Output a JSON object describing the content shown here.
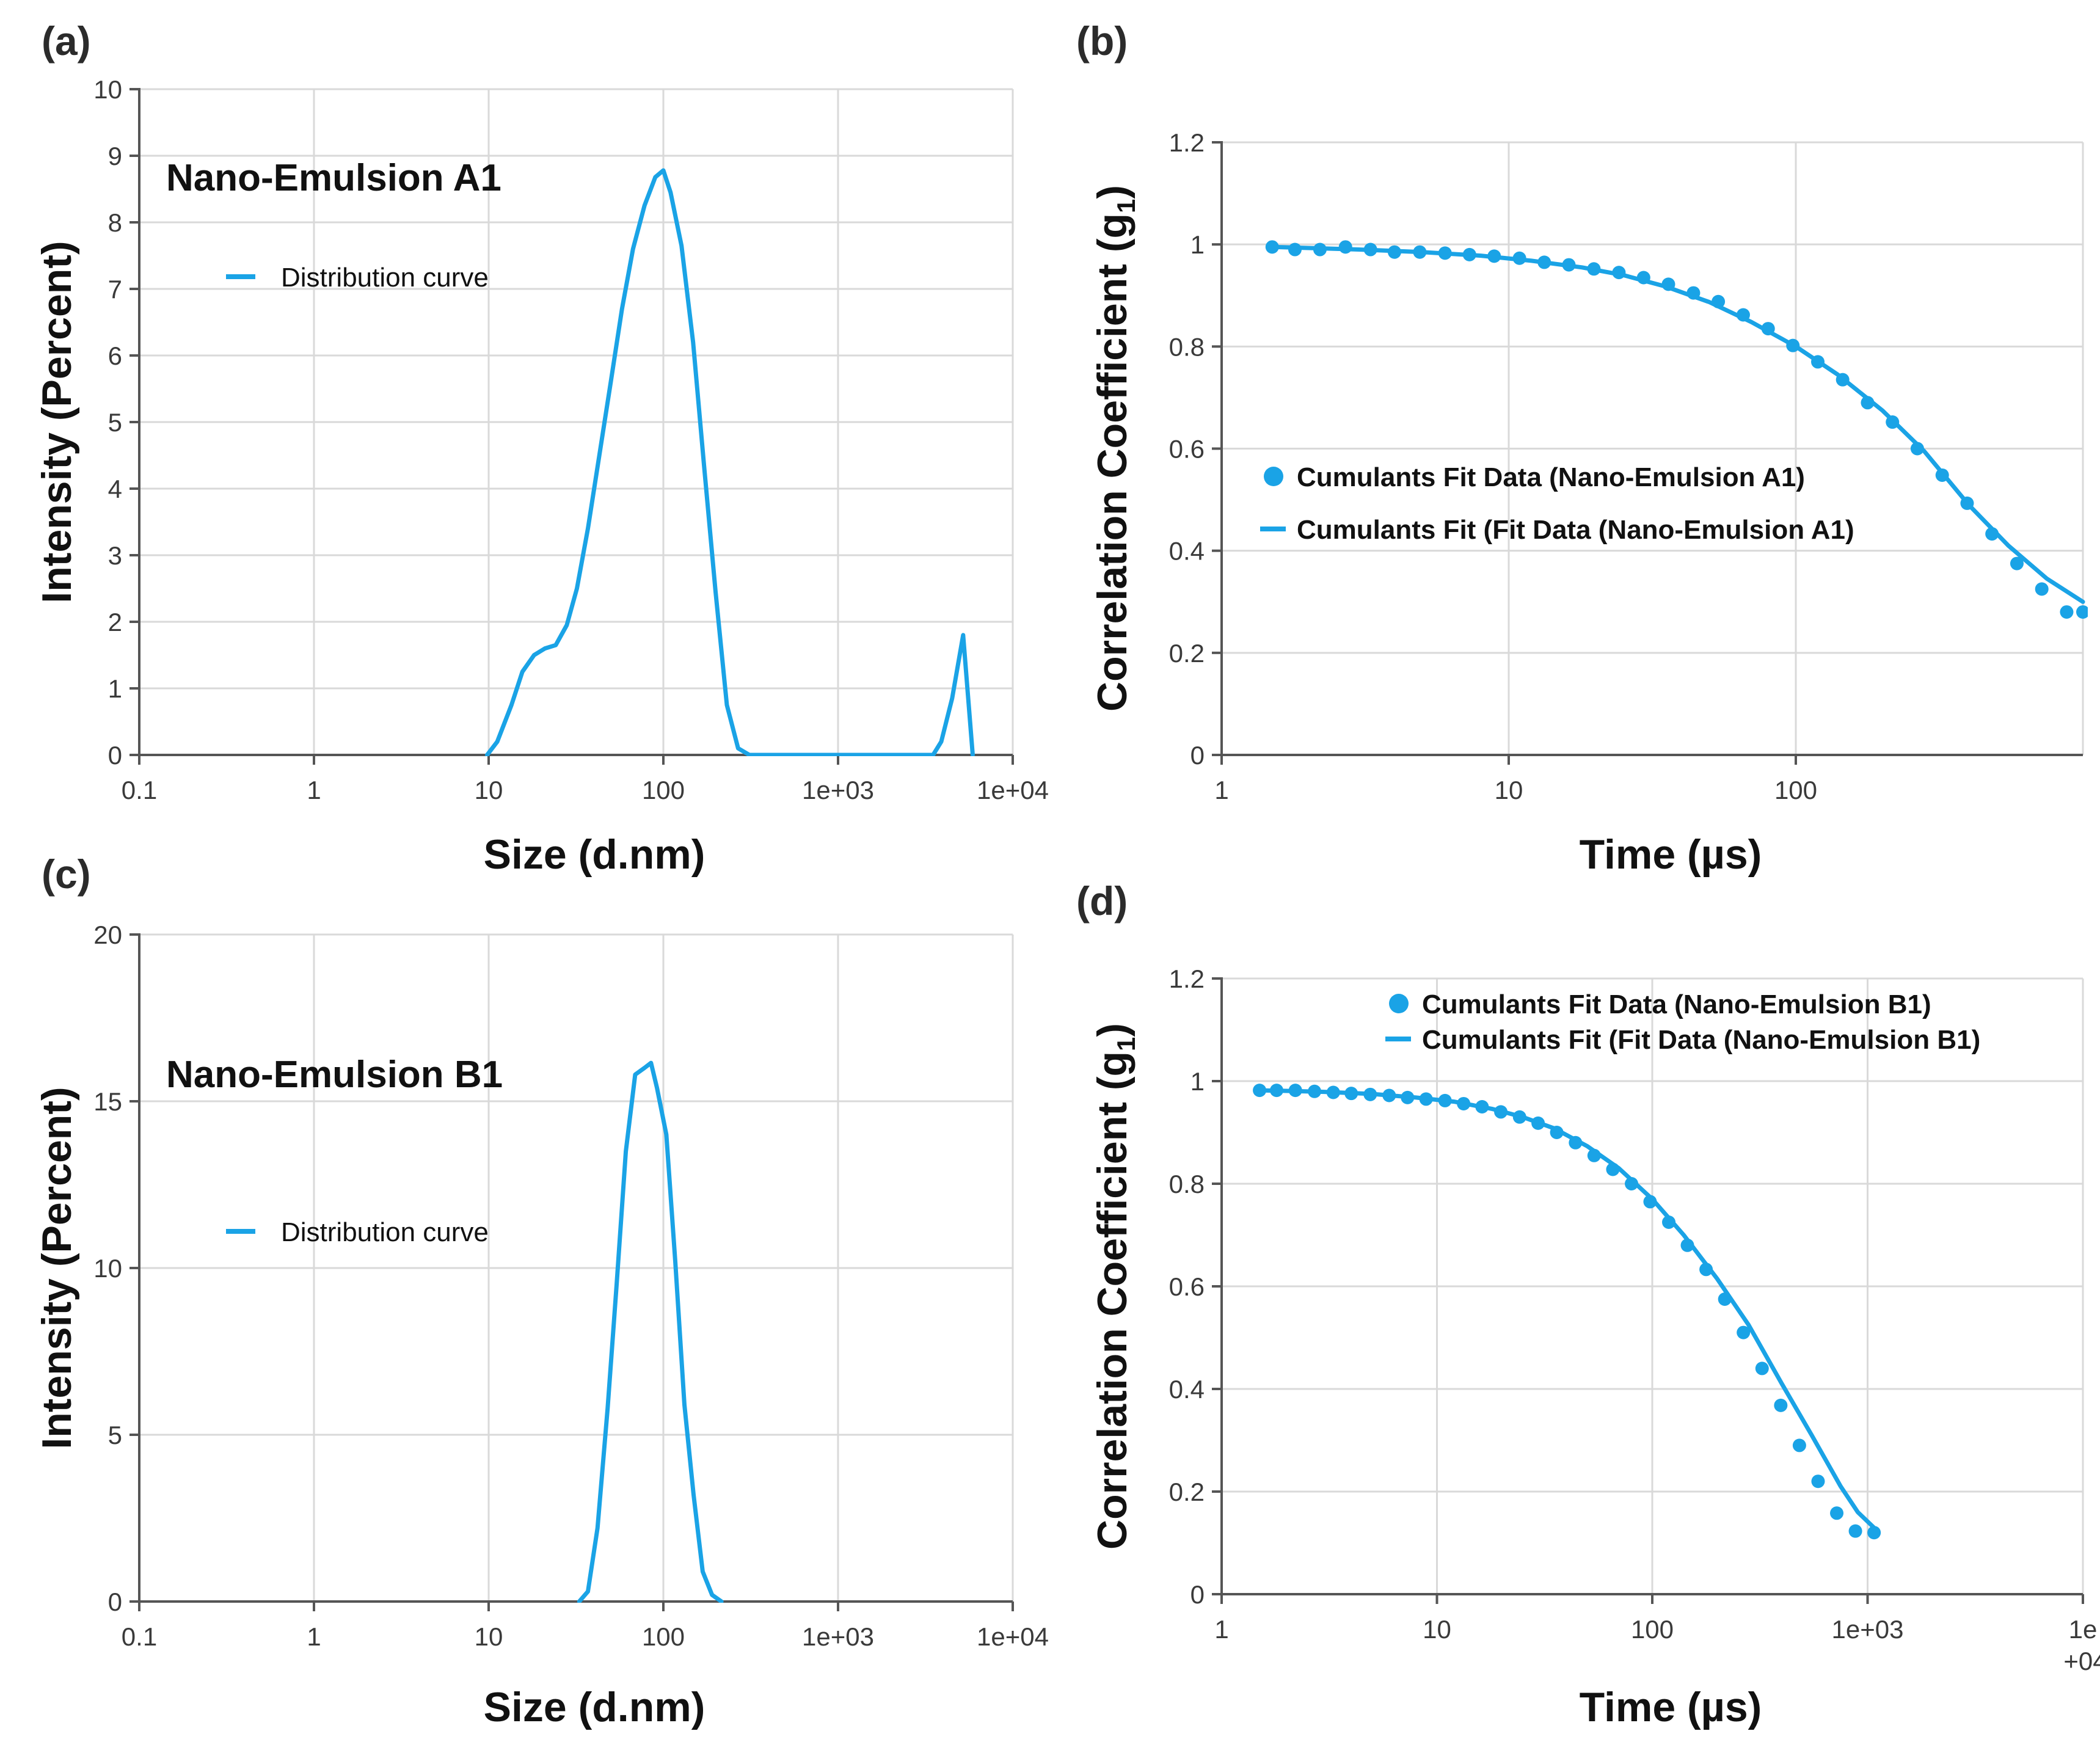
{
  "colors": {
    "series": "#1AA3E6",
    "grid": "#D9D9D9",
    "axis": "#555555"
  },
  "chart_data": [
    {
      "panel": "(a)",
      "type": "line",
      "annotation": "Nano-Emulsion A1",
      "xlabel": "Size (d.nm)",
      "ylabel": "Intensity (Percent)",
      "xscale": "log",
      "xlim": [
        0.1,
        10000
      ],
      "ylim": [
        0,
        10
      ],
      "xticks": [
        0.1,
        1,
        10,
        100,
        1000,
        10000
      ],
      "xticklabels": [
        "0.1",
        "1",
        "10",
        "100",
        "1e+03",
        "1e+04"
      ],
      "yticks": [
        0,
        1,
        2,
        3,
        4,
        5,
        6,
        7,
        8,
        9,
        10
      ],
      "yticklabels": [
        "0",
        "1",
        "2",
        "3",
        "4",
        "5",
        "6",
        "7",
        "8",
        "9",
        "10"
      ],
      "grid": true,
      "legend_position": "upper-left",
      "series": [
        {
          "name": "Distribution curve",
          "style": "line",
          "x": [
            9.8,
            11.2,
            13.5,
            15.6,
            18.2,
            21.0,
            24.2,
            28.0,
            32.0,
            37.0,
            43.0,
            50.0,
            58.0,
            67.0,
            78.0,
            90.0,
            100.0,
            110.0,
            127.0,
            148.0,
            171.0,
            199.0,
            231.0,
            268.0,
            311.0,
            361.0,
            420.0,
            3500.0,
            3900.0,
            4500.0,
            5200.0,
            5900.0
          ],
          "y": [
            0.0,
            0.2,
            0.75,
            1.25,
            1.5,
            1.6,
            1.65,
            1.95,
            2.5,
            3.4,
            4.5,
            5.6,
            6.7,
            7.6,
            8.25,
            8.68,
            8.78,
            8.45,
            7.65,
            6.2,
            4.35,
            2.45,
            0.75,
            0.1,
            0.0,
            0.0,
            0.0,
            0.0,
            0.2,
            0.85,
            1.8,
            0.0
          ]
        }
      ]
    },
    {
      "panel": "(b)",
      "type": "line",
      "xlabel": "Time (µs)",
      "ylabel": "Correlation Coefficient (g1)",
      "xscale": "log",
      "xlim": [
        1,
        1000
      ],
      "ylim": [
        0,
        1.2
      ],
      "xticks": [
        1,
        10,
        100
      ],
      "xticklabels": [
        "1",
        "10",
        "100"
      ],
      "yticks": [
        0,
        0.2,
        0.4,
        0.6,
        0.8,
        1,
        1.2
      ],
      "yticklabels": [
        "0",
        "0.2",
        "0.4",
        "0.6",
        "0.8",
        "1",
        "1.2"
      ],
      "grid": true,
      "legend_position": "center-left",
      "series": [
        {
          "name": "Cumulants Fit Data (Nano-Emulsion A1)",
          "style": "markers",
          "x": [
            1.5,
            1.8,
            2.2,
            2.7,
            3.3,
            4.0,
            4.9,
            6.0,
            7.3,
            8.9,
            10.9,
            13.3,
            16.2,
            19.8,
            24.2,
            29.5,
            36.0,
            44.0,
            53.7,
            65.6,
            80.1,
            97.7,
            119.3,
            145.6,
            177.8,
            217.1,
            265.0,
            323.6,
            395.1,
            482.4,
            589.0,
            719.1,
            878.0,
            1000.0
          ],
          "y": [
            0.995,
            0.99,
            0.99,
            0.995,
            0.99,
            0.985,
            0.985,
            0.983,
            0.98,
            0.977,
            0.973,
            0.965,
            0.96,
            0.952,
            0.945,
            0.935,
            0.922,
            0.905,
            0.888,
            0.862,
            0.835,
            0.802,
            0.77,
            0.735,
            0.69,
            0.652,
            0.6,
            0.548,
            0.493,
            0.433,
            0.375,
            0.325,
            0.28,
            0.28
          ]
        },
        {
          "name": "Cumulants Fit (Fit Data (Nano-Emulsion A1)",
          "style": "line",
          "x": [
            1.5,
            2.0,
            3.0,
            5.0,
            8.0,
            12.0,
            18.0,
            25.0,
            35.0,
            50.0,
            70.0,
            100.0,
            140.0,
            200.0,
            280.0,
            400.0,
            550.0,
            750.0,
            1000.0
          ],
          "y": [
            0.995,
            0.993,
            0.99,
            0.985,
            0.978,
            0.968,
            0.955,
            0.94,
            0.918,
            0.887,
            0.848,
            0.8,
            0.745,
            0.675,
            0.595,
            0.49,
            0.41,
            0.345,
            0.3
          ]
        }
      ]
    },
    {
      "panel": "(c)",
      "type": "line",
      "annotation": "Nano-Emulsion B1",
      "xlabel": "Size (d.nm)",
      "ylabel": "Intensity (Percent)",
      "xscale": "log",
      "xlim": [
        0.1,
        10000
      ],
      "ylim": [
        0,
        20
      ],
      "xticks": [
        0.1,
        1,
        10,
        100,
        1000,
        10000
      ],
      "xticklabels": [
        "0.1",
        "1",
        "10",
        "100",
        "1e+03",
        "1e+04"
      ],
      "yticks": [
        0,
        5,
        10,
        15,
        20
      ],
      "yticklabels": [
        "0",
        "5",
        "10",
        "15",
        "20"
      ],
      "grid": true,
      "legend_position": "center-left",
      "series": [
        {
          "name": "Distribution curve",
          "style": "line",
          "x": [
            33.0,
            37.0,
            42.0,
            48.0,
            54.0,
            61.0,
            69.0,
            78.0,
            85.0,
            92.0,
            104.0,
            117.0,
            132.0,
            149.0,
            168.0,
            190.0,
            215.0
          ],
          "y": [
            0.0,
            0.3,
            2.2,
            5.8,
            9.5,
            13.5,
            15.8,
            16.0,
            16.15,
            15.4,
            14.0,
            10.2,
            5.9,
            3.2,
            0.9,
            0.2,
            0.0
          ]
        }
      ]
    },
    {
      "panel": "(d)",
      "type": "line",
      "xlabel": "Time (µs)",
      "ylabel": "Correlation Coefficient (g1)",
      "xscale": "log",
      "xlim": [
        1,
        10000
      ],
      "ylim": [
        0,
        1.2
      ],
      "xticks": [
        1,
        10,
        100,
        1000,
        10000
      ],
      "xticklabels": [
        "1",
        "10",
        "100",
        "1e+03",
        "1e\n+04"
      ],
      "yticks": [
        0,
        0.2,
        0.4,
        0.6,
        0.8,
        1,
        1.2
      ],
      "yticklabels": [
        "0",
        "0.2",
        "0.4",
        "0.6",
        "0.8",
        "1",
        "1.2"
      ],
      "grid": true,
      "legend_position": "top-right",
      "series": [
        {
          "name": "Cumulants Fit Data (Nano-Emulsion B1)",
          "style": "markers",
          "x": [
            1.5,
            1.8,
            2.2,
            2.7,
            3.3,
            4.0,
            4.9,
            6.0,
            7.3,
            8.9,
            10.9,
            13.3,
            16.2,
            19.8,
            24.2,
            29.5,
            36.0,
            44.0,
            53.7,
            65.6,
            80.1,
            97.7,
            119.3,
            145.6,
            177.8,
            217.1,
            265.0,
            323.6,
            395.1,
            482.4,
            589.0,
            719.1,
            878.0,
            1072.0
          ],
          "y": [
            0.982,
            0.982,
            0.982,
            0.98,
            0.978,
            0.976,
            0.974,
            0.972,
            0.968,
            0.965,
            0.962,
            0.956,
            0.95,
            0.94,
            0.93,
            0.918,
            0.9,
            0.88,
            0.855,
            0.828,
            0.8,
            0.765,
            0.725,
            0.68,
            0.633,
            0.575,
            0.51,
            0.44,
            0.368,
            0.29,
            0.22,
            0.158,
            0.123,
            0.12
          ]
        },
        {
          "name": "Cumulants Fit (Fit Data (Nano-Emulsion B1)",
          "style": "line",
          "x": [
            1.5,
            2.0,
            3.0,
            5.0,
            8.0,
            12.0,
            18.0,
            25.0,
            35.0,
            50.0,
            70.0,
            100.0,
            140.0,
            200.0,
            280.0,
            400.0,
            550.0,
            750.0,
            900.0,
            1100.0
          ],
          "y": [
            0.982,
            0.981,
            0.979,
            0.975,
            0.968,
            0.96,
            0.946,
            0.93,
            0.908,
            0.873,
            0.83,
            0.77,
            0.7,
            0.615,
            0.525,
            0.41,
            0.31,
            0.21,
            0.16,
            0.125
          ]
        }
      ]
    }
  ]
}
